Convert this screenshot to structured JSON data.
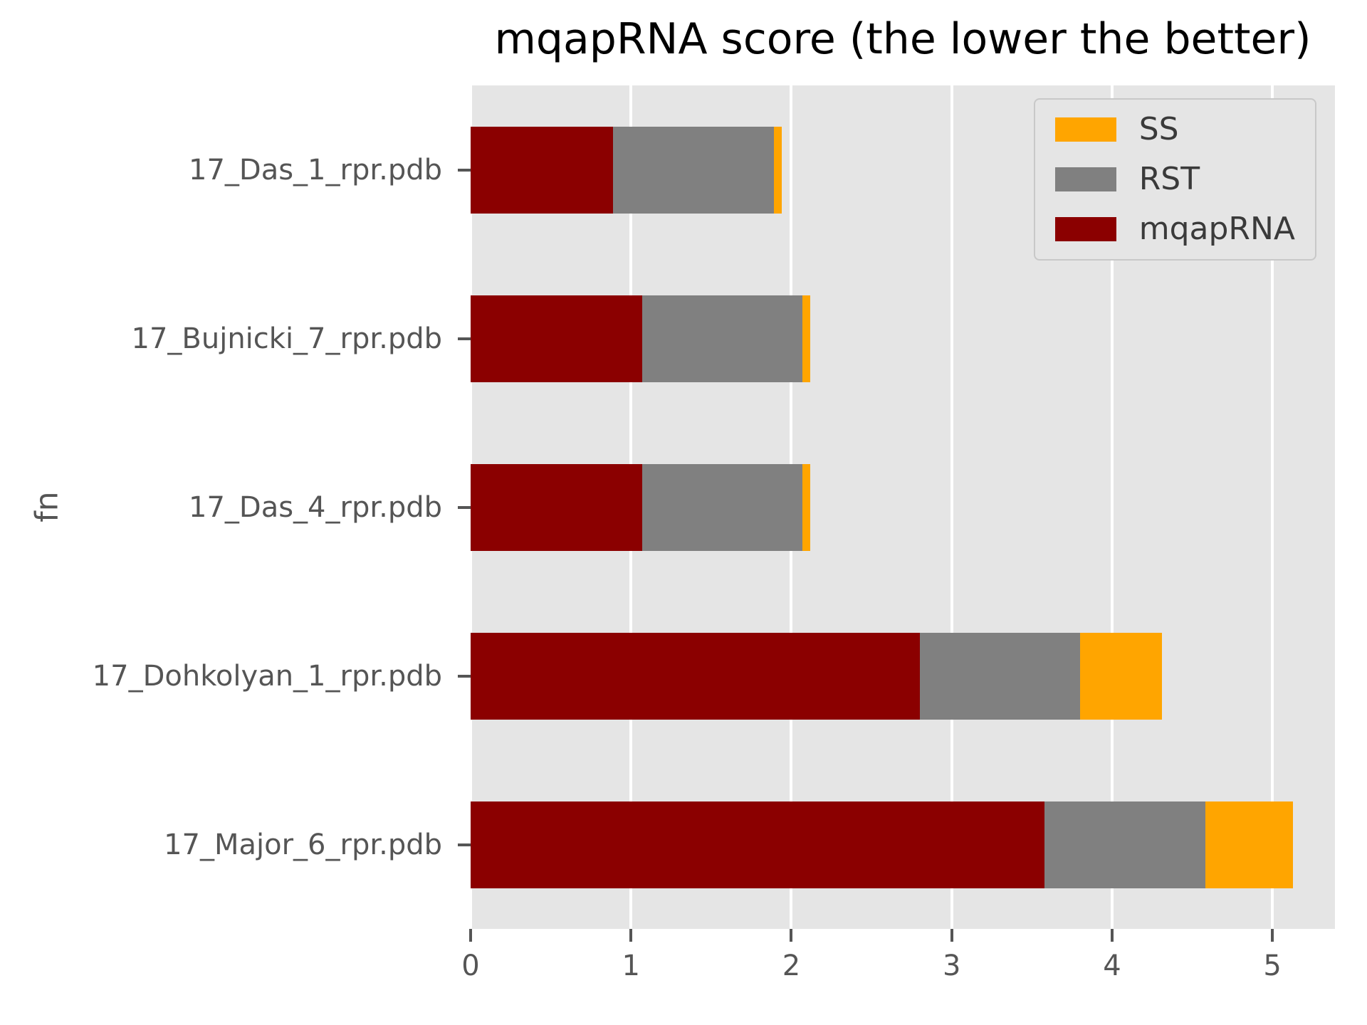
{
  "chart_data": {
    "type": "bar",
    "orientation": "horizontal",
    "stacked": true,
    "title": "mqapRNA score (the lower the better)",
    "ylabel": "fn",
    "xlabel": "",
    "categories": [
      "17_Das_1_rpr.pdb",
      "17_Bujnicki_7_rpr.pdb",
      "17_Das_4_rpr.pdb",
      "17_Dohkolyan_1_rpr.pdb",
      "17_Major_6_rpr.pdb"
    ],
    "series": [
      {
        "name": "mqapRNA",
        "color": "#8B0000",
        "values": [
          0.89,
          1.07,
          1.07,
          2.8,
          3.58
        ]
      },
      {
        "name": "RST",
        "color": "#808080",
        "values": [
          1.0,
          1.0,
          1.0,
          1.0,
          1.0
        ]
      },
      {
        "name": "SS",
        "color": "#FFA500",
        "values": [
          0.05,
          0.05,
          0.05,
          0.51,
          0.55
        ]
      }
    ],
    "xticks": [
      0,
      1,
      2,
      3,
      4,
      5
    ],
    "xlim": [
      0,
      5.39
    ],
    "grid": true,
    "legend": {
      "position": "upper right",
      "entries": [
        "SS",
        "RST",
        "mqapRNA"
      ]
    },
    "colors": {
      "figure_background": "#FFFFFF",
      "plot_background": "#E5E5E5",
      "gridline": "#FFFFFF",
      "tick_text": "#555555",
      "title_text": "#000000"
    }
  }
}
